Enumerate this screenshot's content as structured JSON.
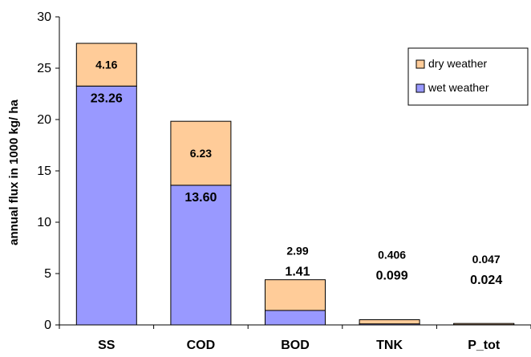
{
  "chart_data": {
    "type": "bar",
    "stacked": true,
    "title": "",
    "xlabel": "",
    "ylabel": "annual flux in 1000 kg/ ha",
    "ylim": [
      0,
      30
    ],
    "yticks": [
      0,
      5,
      10,
      15,
      20,
      25,
      30
    ],
    "grid": false,
    "legend_position": "top-right",
    "categories": [
      "SS",
      "COD",
      "BOD",
      "TNK",
      "P_tot"
    ],
    "series": [
      {
        "name": "wet weather",
        "color": "#9999ff",
        "values": [
          23.26,
          13.6,
          1.41,
          0.099,
          0.024
        ],
        "labels": [
          "23.26",
          "13.60",
          "1.41",
          "0.099",
          "0.024"
        ]
      },
      {
        "name": "dry weather",
        "color": "#ffcc99",
        "values": [
          4.16,
          6.23,
          2.99,
          0.406,
          0.047
        ],
        "labels": [
          "4.16",
          "6.23",
          "2.99",
          "0.406",
          "0.047"
        ]
      }
    ],
    "legend_order": [
      "dry weather",
      "wet weather"
    ]
  }
}
